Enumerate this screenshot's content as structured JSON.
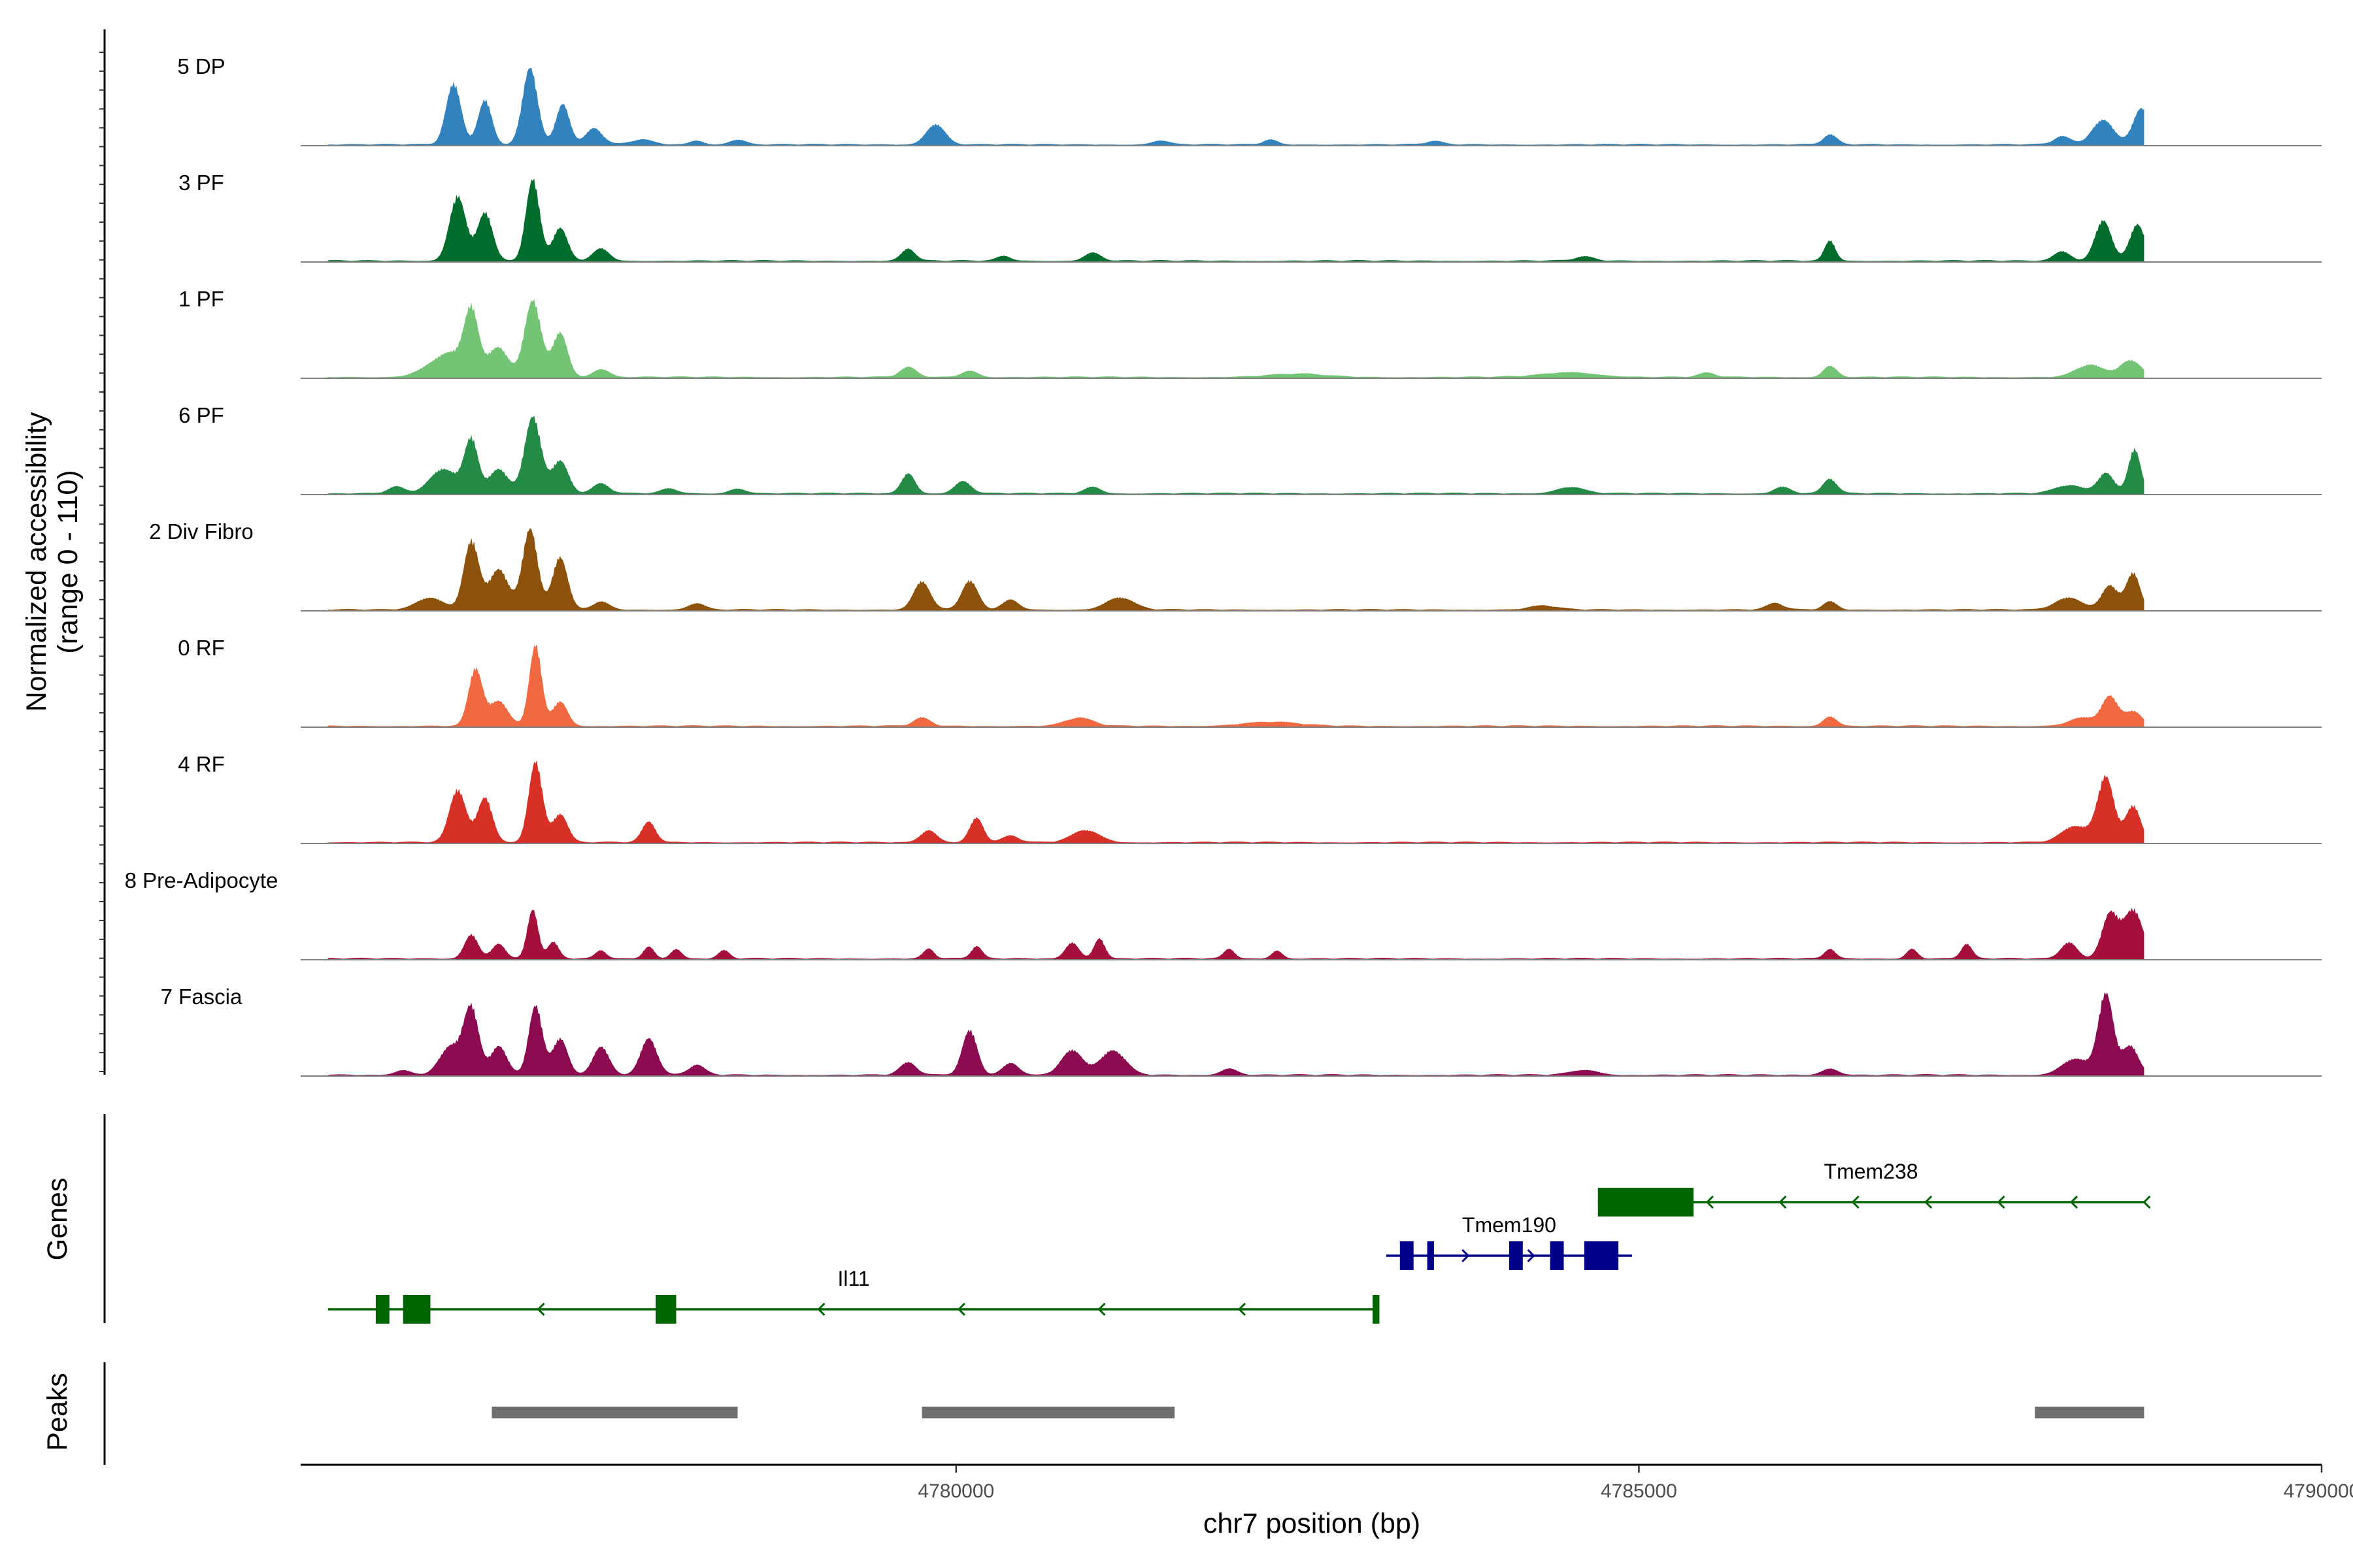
{
  "chart_data": {
    "type": "area",
    "title": "",
    "xlabel": "chr7 position (bp)",
    "ylabel": "Normalized accessibility",
    "ylabel_sub": "(range 0 - 110)",
    "region": {
      "chrom": "chr7",
      "start": 4775400,
      "end": 4788700
    },
    "xlim": [
      4775200,
      4790000
    ],
    "ylim": [
      0,
      110
    ],
    "x_ticks": [
      {
        "value": 4780000,
        "label": "4780000"
      },
      {
        "value": 4785000,
        "label": "4785000"
      },
      {
        "value": 4790000,
        "label": "4790000"
      }
    ],
    "series": [
      {
        "name": "5 DP",
        "color": "#3182BD",
        "peaks": [
          [
            4776320,
            0.75,
            55
          ],
          [
            4776550,
            0.55,
            50
          ],
          [
            4776880,
            0.95,
            55
          ],
          [
            4777120,
            0.5,
            50
          ],
          [
            4777350,
            0.2,
            60
          ],
          [
            4777700,
            0.06,
            80
          ],
          [
            4778100,
            0.05,
            50
          ],
          [
            4778400,
            0.06,
            60
          ],
          [
            4779850,
            0.25,
            70
          ],
          [
            4781500,
            0.05,
            60
          ],
          [
            4782300,
            0.06,
            50
          ],
          [
            4783500,
            0.04,
            60
          ],
          [
            4786400,
            0.12,
            50
          ],
          [
            4788100,
            0.1,
            60
          ],
          [
            4788400,
            0.3,
            80
          ],
          [
            4788680,
            0.45,
            60
          ]
        ]
      },
      {
        "name": "3 PF",
        "color": "#006D2C",
        "peaks": [
          [
            4776350,
            0.8,
            60
          ],
          [
            4776550,
            0.6,
            55
          ],
          [
            4776900,
            1.0,
            50
          ],
          [
            4777100,
            0.4,
            55
          ],
          [
            4777400,
            0.15,
            60
          ],
          [
            4779650,
            0.15,
            50
          ],
          [
            4780350,
            0.06,
            50
          ],
          [
            4781000,
            0.1,
            60
          ],
          [
            4784600,
            0.05,
            70
          ],
          [
            4786400,
            0.25,
            40
          ],
          [
            4788100,
            0.12,
            60
          ],
          [
            4788400,
            0.5,
            60
          ],
          [
            4788650,
            0.45,
            55
          ]
        ]
      },
      {
        "name": "1 PF",
        "color": "#74C476",
        "peaks": [
          [
            4776300,
            0.3,
            150
          ],
          [
            4776450,
            0.7,
            50
          ],
          [
            4776650,
            0.35,
            70
          ],
          [
            4776900,
            0.95,
            60
          ],
          [
            4777100,
            0.55,
            55
          ],
          [
            4777400,
            0.1,
            60
          ],
          [
            4779650,
            0.12,
            60
          ],
          [
            4780100,
            0.08,
            60
          ],
          [
            4782500,
            0.04,
            200
          ],
          [
            4784500,
            0.06,
            200
          ],
          [
            4785500,
            0.05,
            60
          ],
          [
            4786400,
            0.14,
            50
          ],
          [
            4788300,
            0.15,
            100
          ],
          [
            4788600,
            0.2,
            80
          ]
        ]
      },
      {
        "name": "6 PF",
        "color": "#238B45",
        "peaks": [
          [
            4775900,
            0.08,
            60
          ],
          [
            4776250,
            0.3,
            100
          ],
          [
            4776450,
            0.65,
            50
          ],
          [
            4776650,
            0.3,
            70
          ],
          [
            4776900,
            0.95,
            60
          ],
          [
            4777100,
            0.4,
            60
          ],
          [
            4777400,
            0.12,
            60
          ],
          [
            4777900,
            0.06,
            60
          ],
          [
            4778400,
            0.06,
            60
          ],
          [
            4779650,
            0.25,
            50
          ],
          [
            4780050,
            0.15,
            60
          ],
          [
            4781000,
            0.08,
            60
          ],
          [
            4784500,
            0.08,
            100
          ],
          [
            4786050,
            0.08,
            60
          ],
          [
            4786400,
            0.18,
            50
          ],
          [
            4788150,
            0.1,
            100
          ],
          [
            4788420,
            0.25,
            60
          ],
          [
            4788630,
            0.55,
            45
          ]
        ]
      },
      {
        "name": "2 Div Fibro",
        "color": "#8C510A",
        "peaks": [
          [
            4776150,
            0.15,
            100
          ],
          [
            4776450,
            0.85,
            55
          ],
          [
            4776650,
            0.5,
            70
          ],
          [
            4776880,
            1.0,
            55
          ],
          [
            4777100,
            0.65,
            55
          ],
          [
            4777400,
            0.1,
            60
          ],
          [
            4778100,
            0.08,
            60
          ],
          [
            4779750,
            0.35,
            60
          ],
          [
            4780100,
            0.35,
            60
          ],
          [
            4780400,
            0.12,
            60
          ],
          [
            4781200,
            0.15,
            100
          ],
          [
            4784300,
            0.05,
            100
          ],
          [
            4786000,
            0.08,
            60
          ],
          [
            4786400,
            0.1,
            50
          ],
          [
            4788150,
            0.15,
            100
          ],
          [
            4788450,
            0.3,
            60
          ],
          [
            4788620,
            0.45,
            50
          ]
        ]
      },
      {
        "name": "0 RF",
        "color": "#F16940",
        "peaks": [
          [
            4776480,
            0.7,
            50
          ],
          [
            4776650,
            0.3,
            70
          ],
          [
            4776920,
            1.0,
            45
          ],
          [
            4777100,
            0.3,
            55
          ],
          [
            4779750,
            0.1,
            60
          ],
          [
            4780900,
            0.1,
            100
          ],
          [
            4782300,
            0.05,
            200
          ],
          [
            4786400,
            0.12,
            50
          ],
          [
            4788250,
            0.1,
            100
          ],
          [
            4788450,
            0.35,
            60
          ],
          [
            4788620,
            0.18,
            60
          ]
        ]
      },
      {
        "name": "4 RF",
        "color": "#D73027",
        "peaks": [
          [
            4776350,
            0.65,
            60
          ],
          [
            4776550,
            0.55,
            55
          ],
          [
            4776920,
            1.0,
            50
          ],
          [
            4777100,
            0.35,
            55
          ],
          [
            4777750,
            0.25,
            50
          ],
          [
            4779800,
            0.15,
            60
          ],
          [
            4780150,
            0.3,
            50
          ],
          [
            4780400,
            0.08,
            60
          ],
          [
            4780950,
            0.15,
            100
          ],
          [
            4788200,
            0.2,
            100
          ],
          [
            4788420,
            0.8,
            60
          ],
          [
            4788620,
            0.45,
            55
          ]
        ]
      },
      {
        "name": "8 Pre-Adipocyte",
        "color": "#A50F3B",
        "peaks": [
          [
            4776450,
            0.3,
            50
          ],
          [
            4776650,
            0.18,
            50
          ],
          [
            4776900,
            0.6,
            40
          ],
          [
            4777050,
            0.2,
            40
          ],
          [
            4777400,
            0.1,
            40
          ],
          [
            4777750,
            0.15,
            40
          ],
          [
            4777950,
            0.12,
            40
          ],
          [
            4778300,
            0.1,
            40
          ],
          [
            4779800,
            0.12,
            40
          ],
          [
            4780150,
            0.15,
            40
          ],
          [
            4780850,
            0.2,
            50
          ],
          [
            4781050,
            0.25,
            40
          ],
          [
            4782000,
            0.12,
            40
          ],
          [
            4782350,
            0.1,
            40
          ],
          [
            4786400,
            0.12,
            40
          ],
          [
            4787000,
            0.12,
            40
          ],
          [
            4787400,
            0.18,
            40
          ],
          [
            4788150,
            0.2,
            60
          ],
          [
            4788450,
            0.55,
            60
          ],
          [
            4788620,
            0.6,
            70
          ]
        ]
      },
      {
        "name": "7 Fascia",
        "color": "#8C0A4F",
        "peaks": [
          [
            4775950,
            0.06,
            60
          ],
          [
            4776300,
            0.35,
            80
          ],
          [
            4776450,
            0.8,
            55
          ],
          [
            4776650,
            0.35,
            60
          ],
          [
            4776920,
            0.85,
            50
          ],
          [
            4777100,
            0.45,
            55
          ],
          [
            4777400,
            0.35,
            60
          ],
          [
            4777750,
            0.45,
            60
          ],
          [
            4778100,
            0.12,
            60
          ],
          [
            4779650,
            0.15,
            60
          ],
          [
            4780100,
            0.55,
            55
          ],
          [
            4780400,
            0.15,
            60
          ],
          [
            4780850,
            0.3,
            80
          ],
          [
            4781150,
            0.3,
            90
          ],
          [
            4782000,
            0.08,
            60
          ],
          [
            4784600,
            0.06,
            100
          ],
          [
            4786400,
            0.08,
            60
          ],
          [
            4788200,
            0.2,
            100
          ],
          [
            4788420,
            1.0,
            55
          ],
          [
            4788600,
            0.35,
            60
          ]
        ]
      }
    ],
    "genes": [
      {
        "name": "Il11",
        "strand": "-",
        "start": 4775400,
        "end": 4783100,
        "row": 3,
        "exons": [
          [
            4775750,
            4775850
          ],
          [
            4775950,
            4776150
          ],
          [
            4777800,
            4777950
          ],
          [
            4783050,
            4783100
          ]
        ]
      },
      {
        "name": "Tmem190",
        "strand": "+",
        "start": 4783150,
        "end": 4784950,
        "row": 2,
        "exons": [
          [
            4783250,
            4783350
          ],
          [
            4783450,
            4783500
          ],
          [
            4784050,
            4784150
          ],
          [
            4784350,
            4784450
          ],
          [
            4784600,
            4784850
          ]
        ]
      },
      {
        "name": "Tmem238",
        "strand": "-",
        "start": 4784700,
        "end": 4788700,
        "row": 1,
        "exons": [
          [
            4784700,
            4785400
          ]
        ]
      }
    ],
    "peaks_track": [
      [
        4776600,
        4778400
      ],
      [
        4779750,
        4781600
      ],
      [
        4787900,
        4788700
      ]
    ],
    "track_titles": {
      "genes": "Genes",
      "peaks": "Peaks"
    }
  }
}
